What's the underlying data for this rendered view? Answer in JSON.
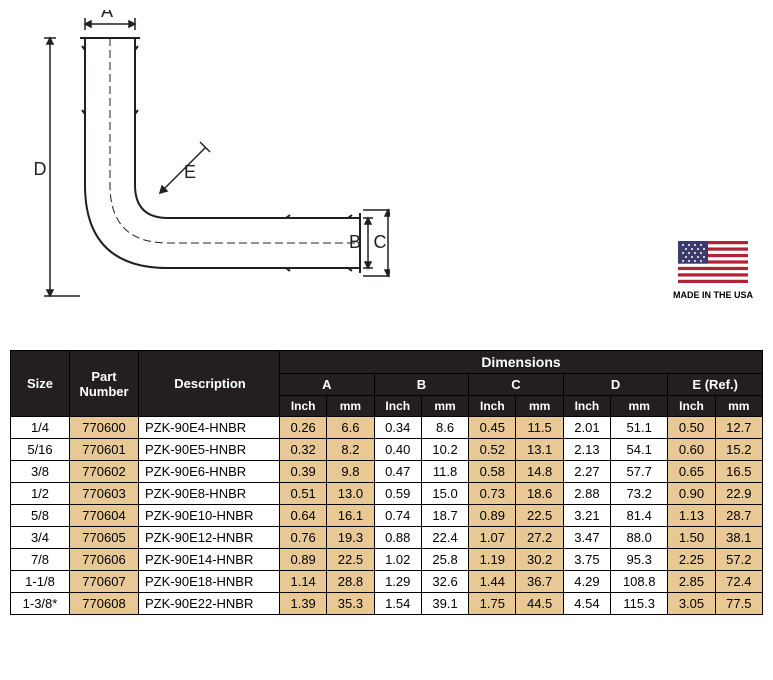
{
  "diagram": {
    "labels": {
      "A": "A",
      "B": "B",
      "C": "C",
      "D": "D",
      "E": "E"
    },
    "stroke_color": "#231f20",
    "stroke_width": 2
  },
  "flag": {
    "label": "MADE IN THE USA",
    "colors": {
      "red": "#b22234",
      "white": "#ffffff",
      "blue": "#3c3b6e"
    }
  },
  "table": {
    "headers": {
      "size": "Size",
      "part": "Part Number",
      "desc": "Description",
      "dims": "Dimensions",
      "A": "A",
      "B": "B",
      "C": "C",
      "D": "D",
      "E": "E (Ref.)",
      "inch": "Inch",
      "mm": "mm"
    },
    "colors": {
      "header_bg": "#231f20",
      "header_fg": "#ffffff",
      "tan": "#e8c996",
      "border": "#000000"
    },
    "rows": [
      {
        "size": "1/4",
        "part": "770600",
        "desc": "PZK-90E4-HNBR",
        "A_in": "0.26",
        "A_mm": "6.6",
        "B_in": "0.34",
        "B_mm": "8.6",
        "C_in": "0.45",
        "C_mm": "11.5",
        "D_in": "2.01",
        "D_mm": "51.1",
        "E_in": "0.50",
        "E_mm": "12.7"
      },
      {
        "size": "5/16",
        "part": "770601",
        "desc": "PZK-90E5-HNBR",
        "A_in": "0.32",
        "A_mm": "8.2",
        "B_in": "0.40",
        "B_mm": "10.2",
        "C_in": "0.52",
        "C_mm": "13.1",
        "D_in": "2.13",
        "D_mm": "54.1",
        "E_in": "0.60",
        "E_mm": "15.2"
      },
      {
        "size": "3/8",
        "part": "770602",
        "desc": "PZK-90E6-HNBR",
        "A_in": "0.39",
        "A_mm": "9.8",
        "B_in": "0.47",
        "B_mm": "11.8",
        "C_in": "0.58",
        "C_mm": "14.8",
        "D_in": "2.27",
        "D_mm": "57.7",
        "E_in": "0.65",
        "E_mm": "16.5"
      },
      {
        "size": "1/2",
        "part": "770603",
        "desc": "PZK-90E8-HNBR",
        "A_in": "0.51",
        "A_mm": "13.0",
        "B_in": "0.59",
        "B_mm": "15.0",
        "C_in": "0.73",
        "C_mm": "18.6",
        "D_in": "2.88",
        "D_mm": "73.2",
        "E_in": "0.90",
        "E_mm": "22.9"
      },
      {
        "size": "5/8",
        "part": "770604",
        "desc": "PZK-90E10-HNBR",
        "A_in": "0.64",
        "A_mm": "16.1",
        "B_in": "0.74",
        "B_mm": "18.7",
        "C_in": "0.89",
        "C_mm": "22.5",
        "D_in": "3.21",
        "D_mm": "81.4",
        "E_in": "1.13",
        "E_mm": "28.7"
      },
      {
        "size": "3/4",
        "part": "770605",
        "desc": "PZK-90E12-HNBR",
        "A_in": "0.76",
        "A_mm": "19.3",
        "B_in": "0.88",
        "B_mm": "22.4",
        "C_in": "1.07",
        "C_mm": "27.2",
        "D_in": "3.47",
        "D_mm": "88.0",
        "E_in": "1.50",
        "E_mm": "38.1"
      },
      {
        "size": "7/8",
        "part": "770606",
        "desc": "PZK-90E14-HNBR",
        "A_in": "0.89",
        "A_mm": "22.5",
        "B_in": "1.02",
        "B_mm": "25.8",
        "C_in": "1.19",
        "C_mm": "30.2",
        "D_in": "3.75",
        "D_mm": "95.3",
        "E_in": "2.25",
        "E_mm": "57.2"
      },
      {
        "size": "1-1/8",
        "part": "770607",
        "desc": "PZK-90E18-HNBR",
        "A_in": "1.14",
        "A_mm": "28.8",
        "B_in": "1.29",
        "B_mm": "32.6",
        "C_in": "1.44",
        "C_mm": "36.7",
        "D_in": "4.29",
        "D_mm": "108.8",
        "E_in": "2.85",
        "E_mm": "72.4"
      },
      {
        "size": "1-3/8*",
        "part": "770608",
        "desc": "PZK-90E22-HNBR",
        "A_in": "1.39",
        "A_mm": "35.3",
        "B_in": "1.54",
        "B_mm": "39.1",
        "C_in": "1.75",
        "C_mm": "44.5",
        "D_in": "4.54",
        "D_mm": "115.3",
        "E_in": "3.05",
        "E_mm": "77.5"
      }
    ]
  }
}
